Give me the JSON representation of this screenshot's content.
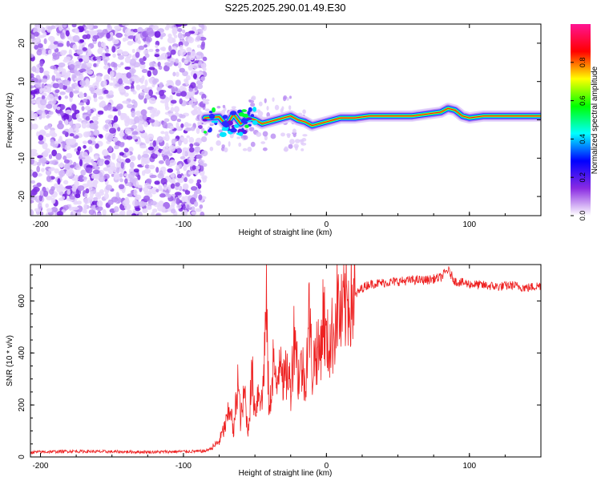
{
  "title": "S225.2025.290.01.49.E30",
  "chart_data": [
    {
      "type": "heatmap",
      "name": "spectrogram",
      "xlabel": "Height of straight line (km)",
      "ylabel": "Frequency (Hz)",
      "xlim": [
        -207,
        150
      ],
      "ylim": [
        -25,
        25
      ],
      "xticks": [
        -200,
        -100,
        0,
        100
      ],
      "yticks": [
        -20,
        -10,
        0,
        10,
        20
      ],
      "noise_region_x": [
        -207,
        -85
      ],
      "signal_onset_x": -85,
      "ridge": {
        "x": [
          -85,
          -75,
          -70,
          -65,
          -60,
          -55,
          -50,
          -45,
          -40,
          -35,
          -30,
          -25,
          -20,
          -15,
          -10,
          -5,
          0,
          5,
          10,
          20,
          30,
          40,
          50,
          60,
          70,
          80,
          85,
          90,
          95,
          100,
          110,
          120,
          130,
          140,
          150
        ],
        "frequency": [
          0.5,
          0.8,
          -1.5,
          1.5,
          -1,
          0.5,
          0,
          -1,
          -0.5,
          0,
          0.5,
          1,
          0,
          -0.5,
          -1.5,
          -1,
          -0.5,
          0,
          0.5,
          0.5,
          1,
          1,
          1,
          1,
          1.5,
          2,
          3,
          2.5,
          1,
          0.5,
          1,
          1,
          1,
          1,
          1
        ]
      },
      "colorbar": {
        "label": "Normalized spectral amplitude",
        "range": [
          0,
          1
        ],
        "ticks": [
          "0.0",
          "0.2",
          "0.4",
          "0.6",
          "0.8"
        ],
        "colors": [
          "#ffffff",
          "#8a2be2",
          "#0000ff",
          "#00ffff",
          "#00ff00",
          "#ffff00",
          "#ff0000",
          "#ff1493"
        ]
      }
    },
    {
      "type": "line",
      "name": "snr",
      "xlabel": "Height of straight line (km)",
      "ylabel": "SNR (10 * v/v)",
      "xlim": [
        -207,
        150
      ],
      "ylim": [
        0,
        740
      ],
      "xticks": [
        -200,
        -100,
        0,
        100
      ],
      "yticks": [
        0,
        200,
        400,
        600
      ],
      "line_color": "#ee2222",
      "series": [
        {
          "name": "SNR",
          "x": [
            -207,
            -180,
            -150,
            -120,
            -100,
            -85,
            -80,
            -75,
            -70,
            -67,
            -65,
            -62,
            -60,
            -57,
            -55,
            -52,
            -50,
            -47,
            -45,
            -42,
            -40,
            -37,
            -35,
            -32,
            -30,
            -27,
            -25,
            -22,
            -20,
            -17,
            -15,
            -12,
            -10,
            -7,
            -5,
            -2,
            0,
            3,
            5,
            8,
            10,
            15,
            20,
            25,
            30,
            40,
            50,
            60,
            70,
            80,
            85,
            90,
            100,
            110,
            120,
            130,
            140,
            150
          ],
          "y": [
            18,
            22,
            20,
            19,
            21,
            22,
            35,
            60,
            130,
            200,
            80,
            300,
            140,
            250,
            90,
            320,
            180,
            270,
            200,
            580,
            150,
            390,
            230,
            460,
            280,
            330,
            260,
            520,
            310,
            350,
            280,
            550,
            330,
            420,
            380,
            560,
            420,
            450,
            480,
            600,
            520,
            610,
            620,
            650,
            665,
            670,
            675,
            680,
            680,
            690,
            720,
            675,
            665,
            660,
            655,
            660,
            650,
            660
          ]
        }
      ],
      "noise_amplitude": 6
    }
  ]
}
